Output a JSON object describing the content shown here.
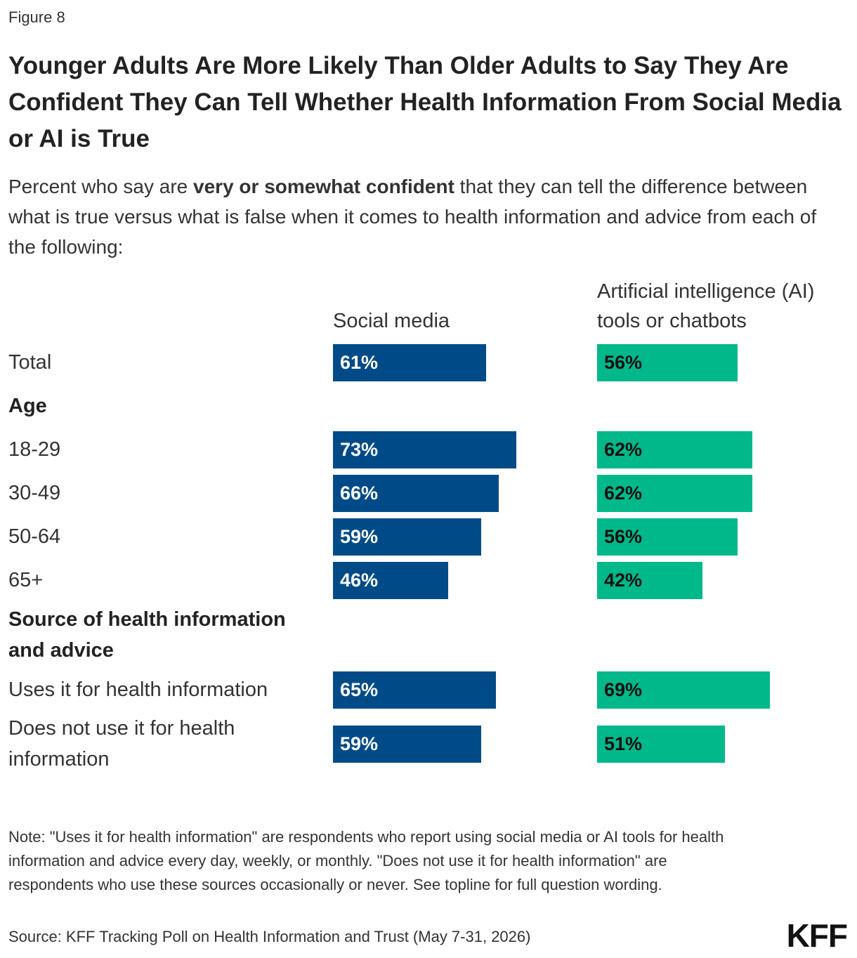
{
  "figure_label": "Figure 8",
  "chart_data": {
    "type": "bar",
    "orientation": "horizontal",
    "title": "Younger Adults Are More Likely Than Older Adults to Say They Are Confident They Can Tell Whether Health Information From Social Media or AI is True",
    "subtitle": [
      "Percent who say are ",
      "very or somewhat confident",
      " that they can tell the difference between what is true versus what is false when it comes to health information and advice from each of the following:"
    ],
    "categories": [
      "Total",
      "Age",
      "18-29",
      "30-49",
      "50-64",
      "65+",
      "Source of health information and advice",
      "Uses it for health information",
      "Does not use it for health information"
    ],
    "xlim": [
      0,
      100
    ],
    "series": [
      {
        "name": "Social media",
        "color": "#004b87",
        "values": [
          61,
          null,
          73,
          66,
          59,
          46,
          null,
          65,
          59
        ],
        "value_labels": [
          "61%",
          null,
          "73%",
          "66%",
          "59%",
          "46%",
          null,
          "65%",
          "59%"
        ]
      },
      {
        "name": "Artificial intelligence (AI) tools or chatbots",
        "color": "#00b88a",
        "values": [
          56,
          null,
          62,
          62,
          56,
          42,
          null,
          69,
          51
        ],
        "value_labels": [
          "56%",
          null,
          "62%",
          "62%",
          "56%",
          "42%",
          null,
          "69%",
          "51%"
        ]
      }
    ],
    "note": "Note: \"Uses it for health information\" are respondents who report using social media or AI tools for health information and advice every day, weekly, or monthly. \"Does not use it for health information\" are respondents who use these sources occasionally or never. See topline for full question wording.",
    "source": "Source: KFF Tracking Poll on Health Information and Trust (May 7-31, 2026)"
  },
  "logo": "KFF"
}
